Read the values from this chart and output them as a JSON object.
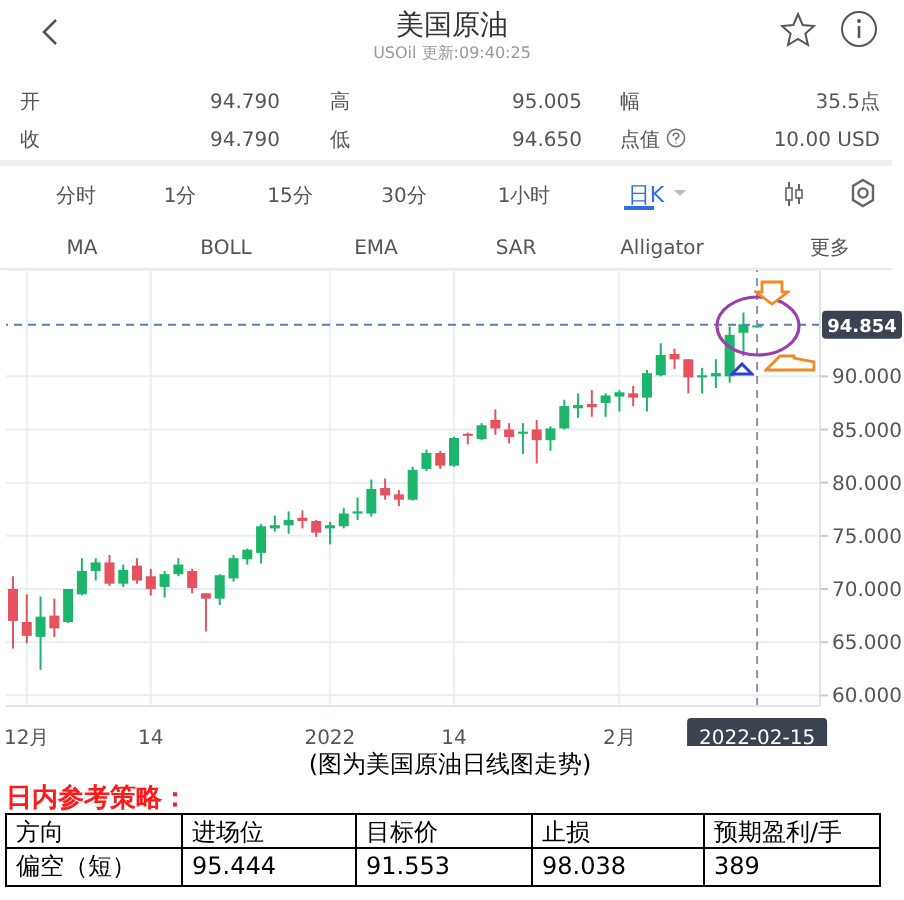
{
  "chart_data": {
    "type": "candlestick",
    "title": "美国原油",
    "subtitle": "USOil 更新:09:40:25",
    "categories": [
      null,
      "12月",
      null,
      null,
      null,
      null,
      null,
      null,
      null,
      null,
      "14",
      null,
      null,
      null,
      null,
      null,
      null,
      null,
      null,
      null,
      null,
      null,
      null,
      "2022",
      null,
      null,
      null,
      null,
      null,
      null,
      null,
      null,
      "14",
      null,
      null,
      null,
      null,
      null,
      null,
      null,
      null,
      null,
      null,
      null,
      "2月",
      null,
      null,
      null,
      null,
      null,
      null,
      null,
      null,
      null,
      "2022-02-15"
    ],
    "ohlc": [
      [
        70.0,
        71.2,
        64.4,
        67.0
      ],
      [
        66.9,
        69.5,
        64.9,
        65.6
      ],
      [
        65.5,
        69.3,
        62.4,
        67.4
      ],
      [
        67.5,
        69.1,
        65.5,
        66.3
      ],
      [
        66.9,
        70.0,
        66.8,
        70.0
      ],
      [
        69.5,
        72.9,
        69.4,
        71.7
      ],
      [
        71.7,
        72.9,
        70.8,
        72.5
      ],
      [
        72.5,
        73.2,
        70.3,
        70.5
      ],
      [
        70.5,
        72.3,
        70.2,
        71.8
      ],
      [
        72.2,
        72.9,
        70.5,
        70.8
      ],
      [
        71.2,
        71.9,
        69.4,
        70.0
      ],
      [
        70.2,
        71.7,
        69.2,
        71.4
      ],
      [
        71.4,
        72.9,
        71.2,
        72.3
      ],
      [
        71.7,
        71.9,
        69.6,
        70.1
      ],
      [
        69.6,
        69.6,
        66.0,
        69.1
      ],
      [
        69.1,
        71.4,
        68.5,
        71.3
      ],
      [
        71.0,
        73.2,
        70.7,
        72.9
      ],
      [
        72.8,
        73.8,
        72.3,
        73.7
      ],
      [
        73.4,
        76.1,
        72.4,
        75.9
      ],
      [
        75.7,
        76.9,
        75.4,
        76.0
      ],
      [
        76.0,
        77.3,
        75.2,
        76.5
      ],
      [
        76.7,
        77.4,
        75.7,
        76.4
      ],
      [
        76.4,
        76.5,
        74.9,
        75.3
      ],
      [
        75.7,
        76.3,
        74.2,
        76.0
      ],
      [
        75.9,
        77.6,
        75.7,
        77.1
      ],
      [
        77.1,
        78.6,
        76.5,
        77.3
      ],
      [
        77.1,
        80.3,
        76.8,
        79.4
      ],
      [
        79.5,
        80.4,
        78.4,
        78.8
      ],
      [
        78.9,
        79.3,
        77.8,
        78.4
      ],
      [
        78.4,
        81.5,
        78.3,
        81.2
      ],
      [
        81.3,
        83.1,
        81.1,
        82.8
      ],
      [
        82.8,
        83.0,
        81.3,
        81.6
      ],
      [
        81.6,
        84.3,
        81.5,
        84.2
      ],
      [
        84.6,
        84.7,
        83.6,
        84.4
      ],
      [
        84.1,
        85.6,
        84.0,
        85.4
      ],
      [
        85.9,
        86.9,
        84.5,
        85.1
      ],
      [
        85.0,
        85.6,
        83.7,
        84.3
      ],
      [
        84.6,
        85.6,
        82.7,
        84.8
      ],
      [
        85.0,
        85.9,
        81.8,
        84.0
      ],
      [
        84.0,
        85.3,
        83.0,
        85.1
      ],
      [
        85.1,
        87.8,
        85.0,
        87.2
      ],
      [
        87.0,
        88.4,
        86.1,
        87.3
      ],
      [
        87.4,
        88.7,
        86.2,
        87.1
      ],
      [
        87.5,
        88.4,
        86.2,
        88.2
      ],
      [
        88.1,
        88.7,
        86.7,
        88.5
      ],
      [
        88.4,
        89.1,
        87.2,
        88.0
      ],
      [
        88.0,
        90.6,
        86.7,
        90.3
      ],
      [
        90.1,
        93.1,
        90.0,
        92.0
      ],
      [
        92.1,
        92.6,
        90.7,
        91.6
      ],
      [
        91.6,
        91.6,
        88.4,
        89.9
      ],
      [
        89.9,
        90.8,
        88.4,
        90.1
      ],
      [
        90.0,
        91.6,
        88.9,
        90.3
      ],
      [
        90.0,
        94.7,
        89.4,
        93.9
      ],
      [
        94.1,
        96.0,
        91.9,
        94.9
      ],
      [
        94.79,
        95.005,
        94.65,
        94.79
      ]
    ],
    "colors": [
      "#e5535f",
      "#e5535f",
      "#1db56c",
      "#e5535f",
      "#1db56c",
      "#1db56c",
      "#1db56c",
      "#e5535f",
      "#1db56c",
      "#e5535f",
      "#e5535f",
      "#1db56c",
      "#1db56c",
      "#e5535f",
      "#e5535f",
      "#1db56c",
      "#1db56c",
      "#1db56c",
      "#1db56c",
      "#1db56c",
      "#1db56c",
      "#e5535f",
      "#e5535f",
      "#1db56c",
      "#1db56c",
      "#1db56c",
      "#1db56c",
      "#e5535f",
      "#e5535f",
      "#1db56c",
      "#1db56c",
      "#e5535f",
      "#1db56c",
      "#e5535f",
      "#1db56c",
      "#e5535f",
      "#e5535f",
      "#1db56c",
      "#e5535f",
      "#1db56c",
      "#1db56c",
      "#1db56c",
      "#e5535f",
      "#1db56c",
      "#1db56c",
      "#e5535f",
      "#1db56c",
      "#1db56c",
      "#e5535f",
      "#e5535f",
      "#1db56c",
      "#1db56c",
      "#1db56c",
      "#1db56c",
      "#1db56c"
    ],
    "ylim": [
      59,
      100
    ],
    "yticks": [
      {
        "value": 60,
        "label": "60.000"
      },
      {
        "value": 65,
        "label": "65.000"
      },
      {
        "value": 70,
        "label": "70.000"
      },
      {
        "value": 75,
        "label": "75.000"
      },
      {
        "value": 80,
        "label": "80.000"
      },
      {
        "value": 85,
        "label": "85.000"
      },
      {
        "value": 90,
        "label": "90.000"
      }
    ],
    "grid": true,
    "ref_lines": [
      {
        "axis": "y",
        "value": 94.854,
        "label": "94.854",
        "color": "#5b7fb5",
        "line_style": "dashed"
      },
      {
        "axis": "x",
        "value": "2022-02-15",
        "color": "#8a97a6",
        "line_style": "dashed"
      }
    ],
    "annotations": [
      "开",
      "94.790",
      "高",
      "95.005",
      "幅",
      "35.5点",
      "收",
      "94.790",
      "低",
      "94.650",
      "点值",
      "10.00 USD",
      "分时",
      "1分",
      "15分",
      "30分",
      "1小时",
      "日K",
      "MA",
      "BOLL",
      "EMA",
      "SAR",
      "Alligator",
      "更多",
      "(图为美国原油日线图走势)",
      "日内参考策略：",
      "方向",
      "进场位",
      "目标价",
      "止损",
      "预期盈利/手",
      "偏空（短）",
      "95.444",
      "91.553",
      "98.038",
      "389"
    ]
  }
}
